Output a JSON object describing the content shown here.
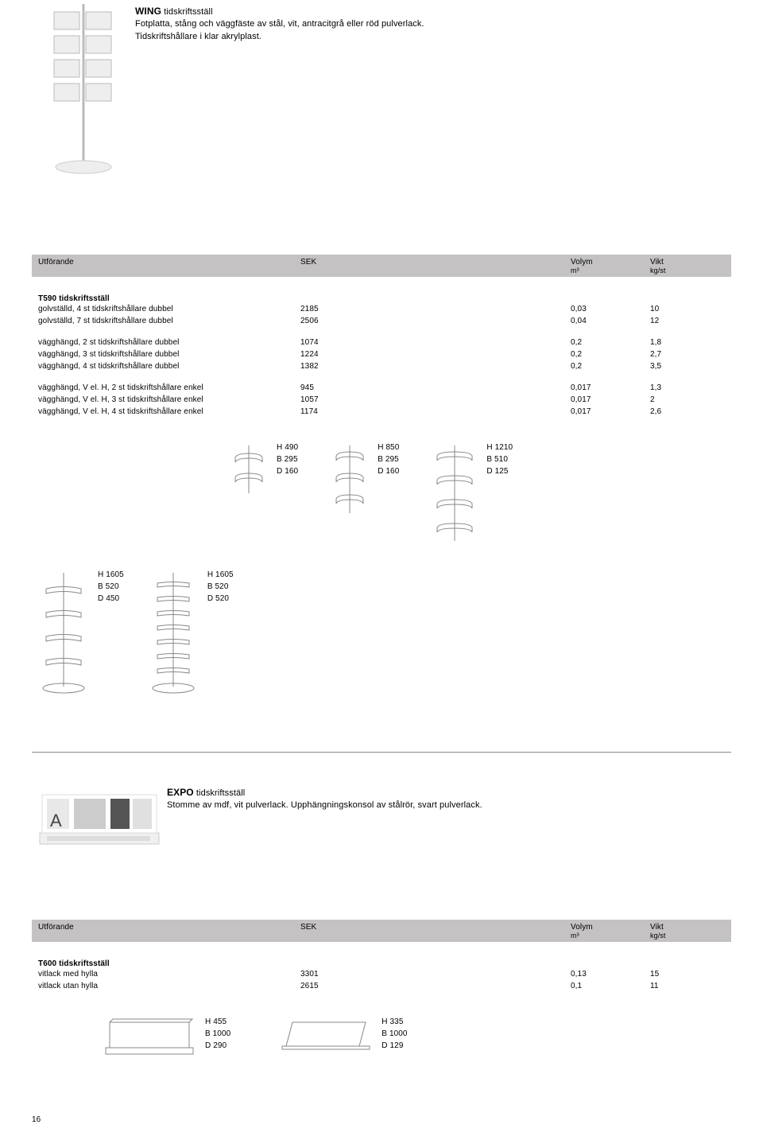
{
  "wing": {
    "title": "WING",
    "subtitle": "tidskriftsställ",
    "line1": "Fotplatta, stång och väggfäste av stål, vit, antracitgrå eller röd pulverlack.",
    "line2": "Tidskriftshållare i klar akrylplast."
  },
  "table_header": {
    "col1": "Utförande",
    "col2": "SEK",
    "col3": "Volym",
    "col3_sub": "m³",
    "col4": "Vikt",
    "col4_sub": "kg/st"
  },
  "t590": {
    "title": "T590 tidskriftsställ",
    "rows_a": [
      {
        "label": "golvställd, 4 st tidskriftshållare dubbel",
        "sek": "2185",
        "vol": "0,03",
        "vikt": "10"
      },
      {
        "label": "golvställd, 7 st tidskriftshållare dubbel",
        "sek": "2506",
        "vol": "0,04",
        "vikt": "12"
      }
    ],
    "rows_b": [
      {
        "label": "vägghängd, 2 st tidskriftshållare dubbel",
        "sek": "1074",
        "vol": "0,2",
        "vikt": "1,8"
      },
      {
        "label": "vägghängd, 3 st tidskriftshållare dubbel",
        "sek": "1224",
        "vol": "0,2",
        "vikt": "2,7"
      },
      {
        "label": "vägghängd, 4 st tidskriftshållare dubbel",
        "sek": "1382",
        "vol": "0,2",
        "vikt": "3,5"
      }
    ],
    "rows_c": [
      {
        "label": "vägghängd, V el. H, 2 st tidskriftshållare enkel",
        "sek": "945",
        "vol": "0,017",
        "vikt": "1,3"
      },
      {
        "label": "vägghängd, V el. H, 3 st tidskriftshållare enkel",
        "sek": "1057",
        "vol": "0,017",
        "vikt": "2"
      },
      {
        "label": "vägghängd, V el. H, 4 st tidskriftshållare enkel",
        "sek": "1174",
        "vol": "0,017",
        "vikt": "2,6"
      }
    ]
  },
  "diagrams1": [
    {
      "h": "H 490",
      "b": "B 295",
      "d": "D 160"
    },
    {
      "h": "H 850",
      "b": "B 295",
      "d": "D 160"
    },
    {
      "h": "H 1210",
      "b": "B 510",
      "d": "D 125"
    }
  ],
  "diagrams2": [
    {
      "h": "H 1605",
      "b": "B 520",
      "d": "D 450"
    },
    {
      "h": "H 1605",
      "b": "B 520",
      "d": "D 520"
    }
  ],
  "expo": {
    "title": "EXPO",
    "subtitle": "tidskriftsställ",
    "desc": "Stomme av mdf, vit pulverlack. Upphängningskonsol av stålrör, svart pulverlack."
  },
  "t600": {
    "title": "T600 tidskriftsställ",
    "rows": [
      {
        "label": "vitlack med hylla",
        "sek": "3301",
        "vol": "0,13",
        "vikt": "15"
      },
      {
        "label": "vitlack utan hylla",
        "sek": "2615",
        "vol": "0,1",
        "vikt": "11"
      }
    ]
  },
  "diagrams3": [
    {
      "h": "H 455",
      "b": "B 1000",
      "d": "D 290"
    },
    {
      "h": "H 335",
      "b": "B 1000",
      "d": "D 129"
    }
  ],
  "page_number": "16"
}
